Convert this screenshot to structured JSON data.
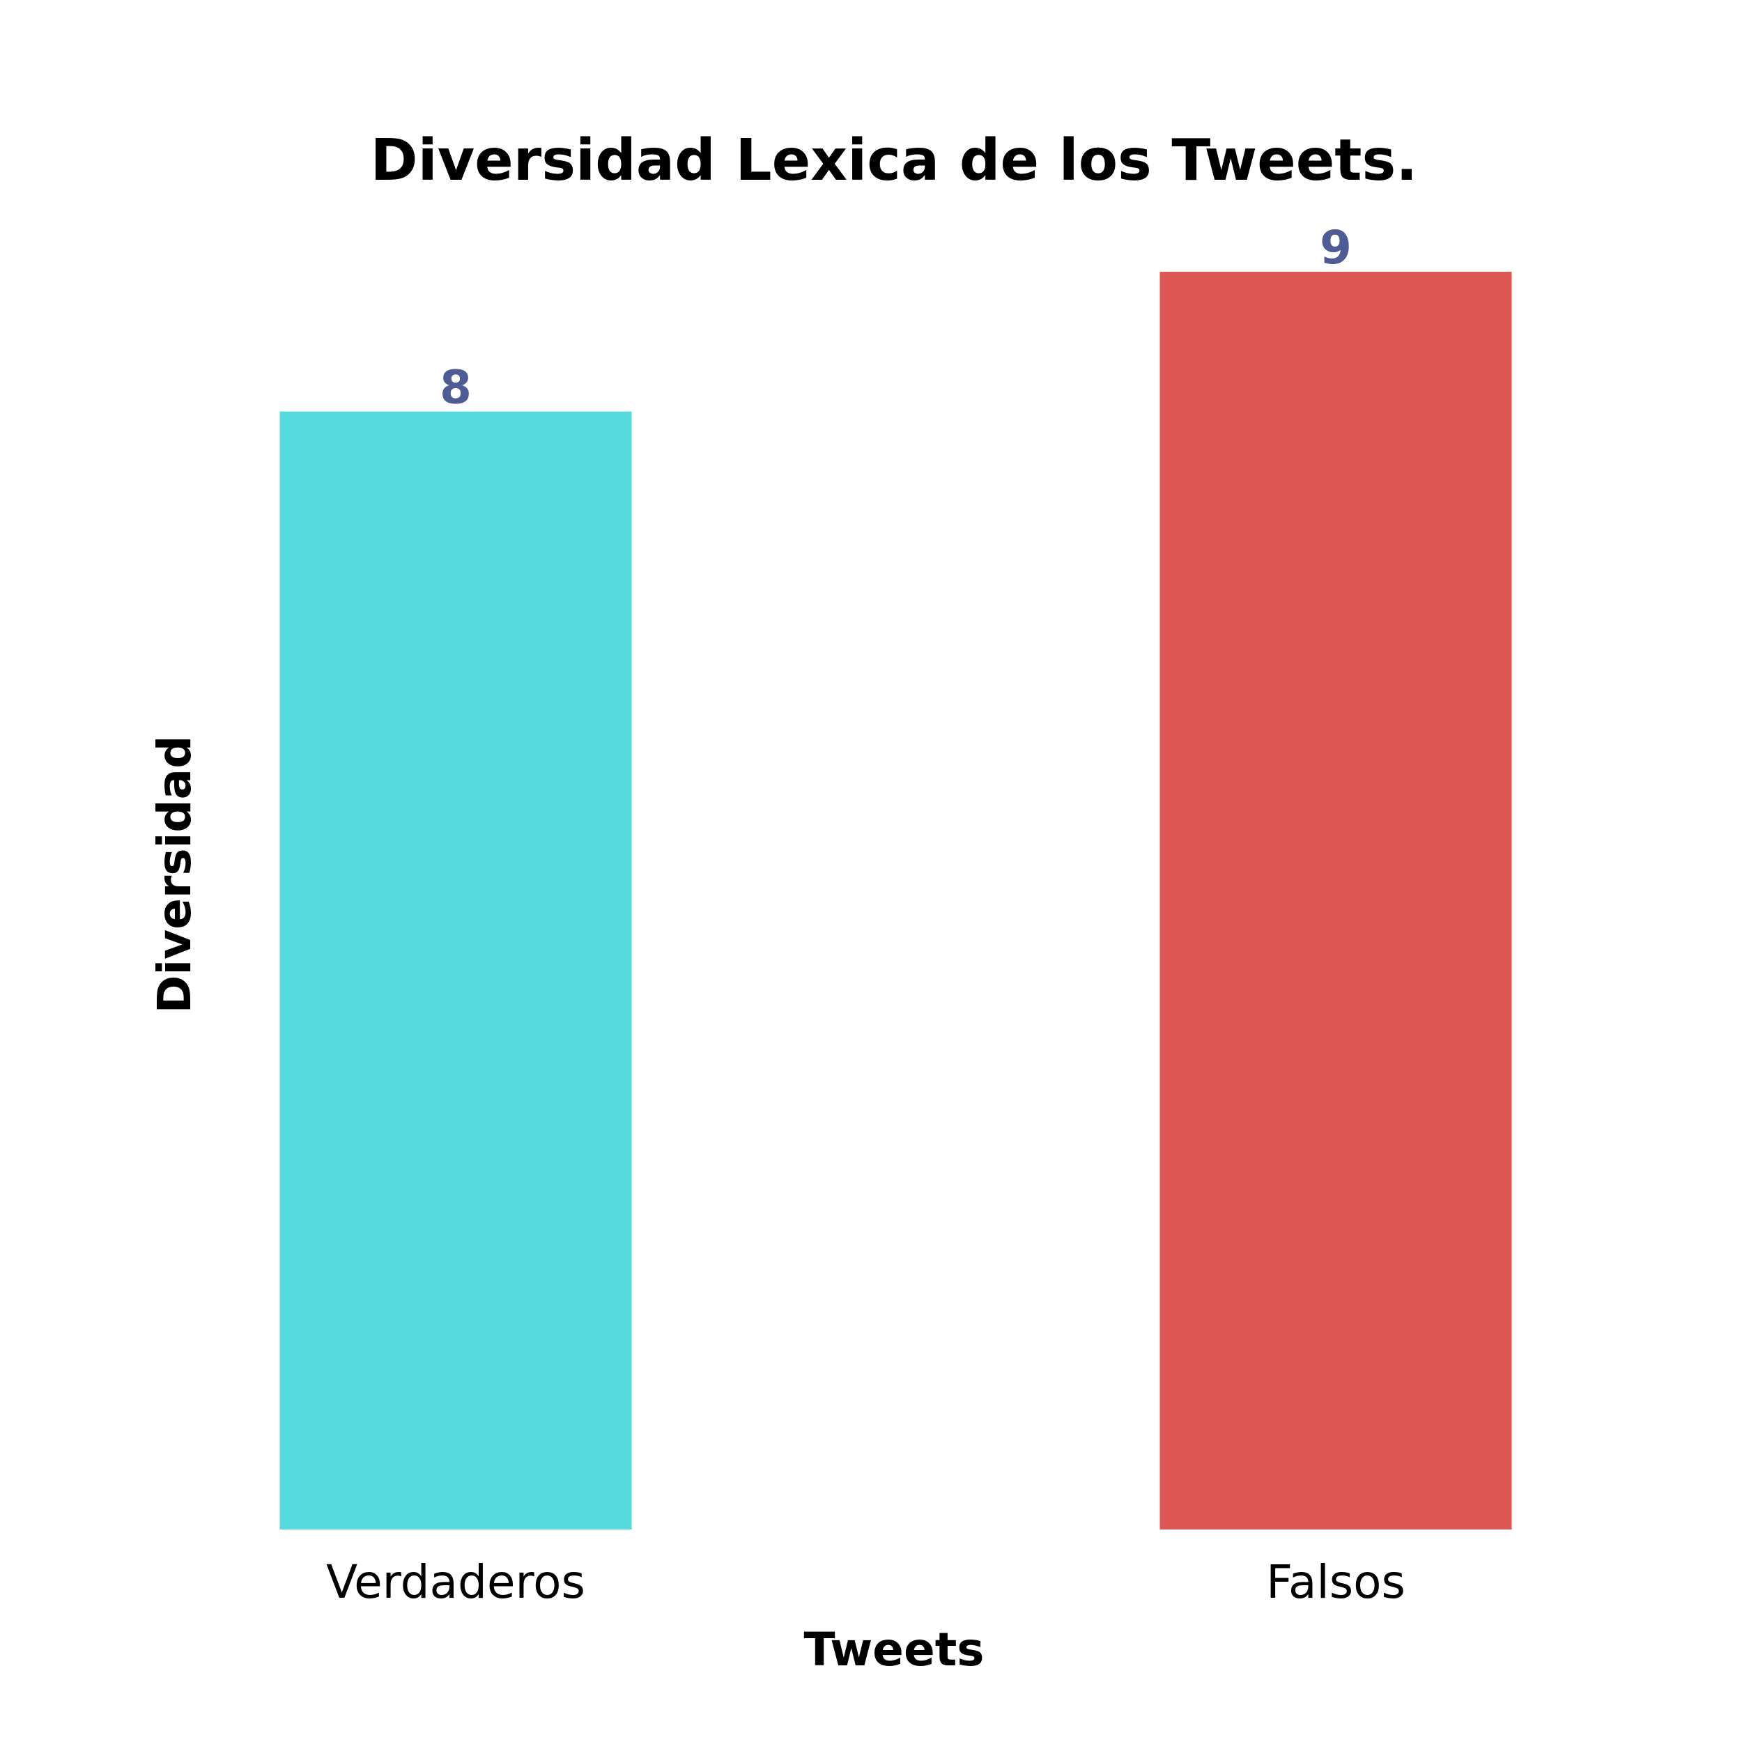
{
  "chart_data": {
    "type": "bar",
    "title": "Diversidad Lexica de los Tweets.",
    "xlabel": "Tweets",
    "ylabel": "Diversidad",
    "categories": [
      "Verdaderos",
      "Falsos"
    ],
    "values": [
      8,
      9
    ],
    "value_labels": [
      "8",
      "9"
    ],
    "ylim": [
      0,
      9
    ],
    "grid": false,
    "legend": "none",
    "colors": {
      "bars": [
        "#55d9dc",
        "#dd5755"
      ],
      "value_label": "#4f5b94",
      "text": "#000000"
    }
  }
}
